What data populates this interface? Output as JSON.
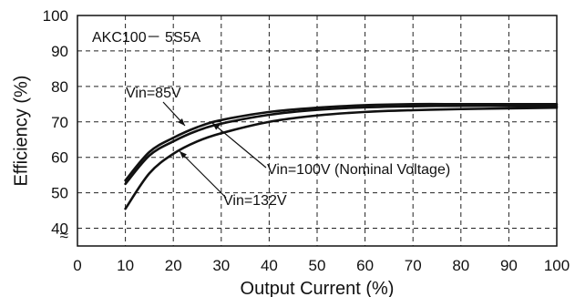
{
  "chart_data": {
    "type": "line",
    "annotation_model": "AKC100－ 5S5A",
    "xlabel": "Output Current (%)",
    "ylabel": "Efficiency (%)",
    "xlim": [
      0,
      100
    ],
    "ylim": [
      35,
      100
    ],
    "axis_break": "≈",
    "x_ticks": [
      "0",
      "10",
      "20",
      "30",
      "40",
      "50",
      "60",
      "70",
      "80",
      "90",
      "100"
    ],
    "y_ticks": [
      "40",
      "50",
      "60",
      "70",
      "80",
      "90",
      "100"
    ],
    "grid": true,
    "series": [
      {
        "name": "Vin=85V",
        "label_text": "Vin=85V",
        "x": [
          10,
          15,
          20,
          25,
          30,
          40,
          50,
          60,
          70,
          80,
          90,
          100
        ],
        "y": [
          53.5,
          61.5,
          65.5,
          68.5,
          70.5,
          72.8,
          74.0,
          74.7,
          75.0,
          75.0,
          75.0,
          75.0
        ]
      },
      {
        "name": "Vin=100V (Nominal Voltage)",
        "label_text": "Vin=100V (Nominal Voltage)",
        "x": [
          10,
          15,
          20,
          25,
          30,
          40,
          50,
          60,
          70,
          80,
          90,
          100
        ],
        "y": [
          52.5,
          60.5,
          64.5,
          67.5,
          69.5,
          72.0,
          73.4,
          74.1,
          74.4,
          74.5,
          74.5,
          74.5
        ]
      },
      {
        "name": "Vin=132V",
        "label_text": "Vin=132V",
        "x": [
          10,
          15,
          20,
          25,
          30,
          40,
          50,
          60,
          70,
          80,
          90,
          100
        ],
        "y": [
          45.5,
          55.5,
          61.0,
          64.5,
          66.8,
          70.0,
          71.8,
          72.8,
          73.3,
          73.6,
          73.8,
          74.0
        ]
      }
    ]
  }
}
